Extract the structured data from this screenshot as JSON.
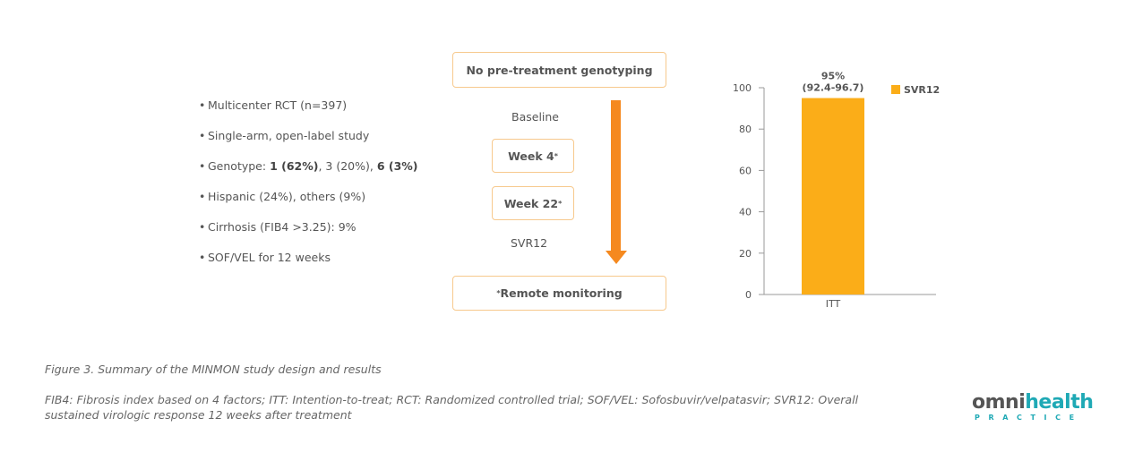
{
  "bullets": [
    {
      "parts": [
        {
          "text": "Multicenter RCT (n=397)",
          "bold": false
        }
      ]
    },
    {
      "parts": [
        {
          "text": "Single-arm, open-label study",
          "bold": false
        }
      ]
    },
    {
      "parts": [
        {
          "text": "Genotype: ",
          "bold": false
        },
        {
          "text": "1 (62%)",
          "bold": true
        },
        {
          "text": ", 3 (20%), ",
          "bold": false
        },
        {
          "text": "6 (3%)",
          "bold": true
        }
      ]
    },
    {
      "parts": [
        {
          "text": "Hispanic (24%), others (9%)",
          "bold": false
        }
      ]
    },
    {
      "parts": [
        {
          "text": "Cirrhosis (FIB4 >3.25): 9%",
          "bold": false
        }
      ]
    },
    {
      "parts": [
        {
          "text": "SOF/VEL for 12 weeks",
          "bold": false
        }
      ]
    }
  ],
  "flow": {
    "top_box": "No pre-treatment genotyping",
    "baseline": "Baseline",
    "week4": "Week 4",
    "week4_mark": "*",
    "week22": "Week 22",
    "week22_mark": "*",
    "svr12": "SVR12",
    "bottom_mark": "*",
    "bottom_box": "Remote monitoring",
    "arrow_color": "#f5891f",
    "box_border_color": "#f7c98d"
  },
  "chart_data": {
    "type": "bar",
    "categories": [
      "ITT"
    ],
    "series": [
      {
        "name": "SVR12",
        "values": [
          95
        ],
        "color": "#fbad18"
      }
    ],
    "data_labels": [
      "95%",
      "(92.4-96.7)"
    ],
    "ylim": [
      0,
      100
    ],
    "yticks": [
      0,
      20,
      40,
      60,
      80,
      100
    ],
    "xlabel": "",
    "ylabel": "",
    "grid": false,
    "legend_position": "top-right"
  },
  "captions": {
    "figure": "Figure 3. Summary of the MINMON study design and results",
    "notes": "FIB4: Fibrosis index based on 4 factors; ITT: Intention-to-treat; RCT: Randomized controlled trial; SOF/VEL: Sofosbuvir/velpatasvir; SVR12: Overall sustained virologic response 12 weeks after treatment"
  },
  "logo": {
    "omni": "omni",
    "health": "health",
    "practice": "PRACTICE",
    "teal": "#1fa9b5"
  }
}
